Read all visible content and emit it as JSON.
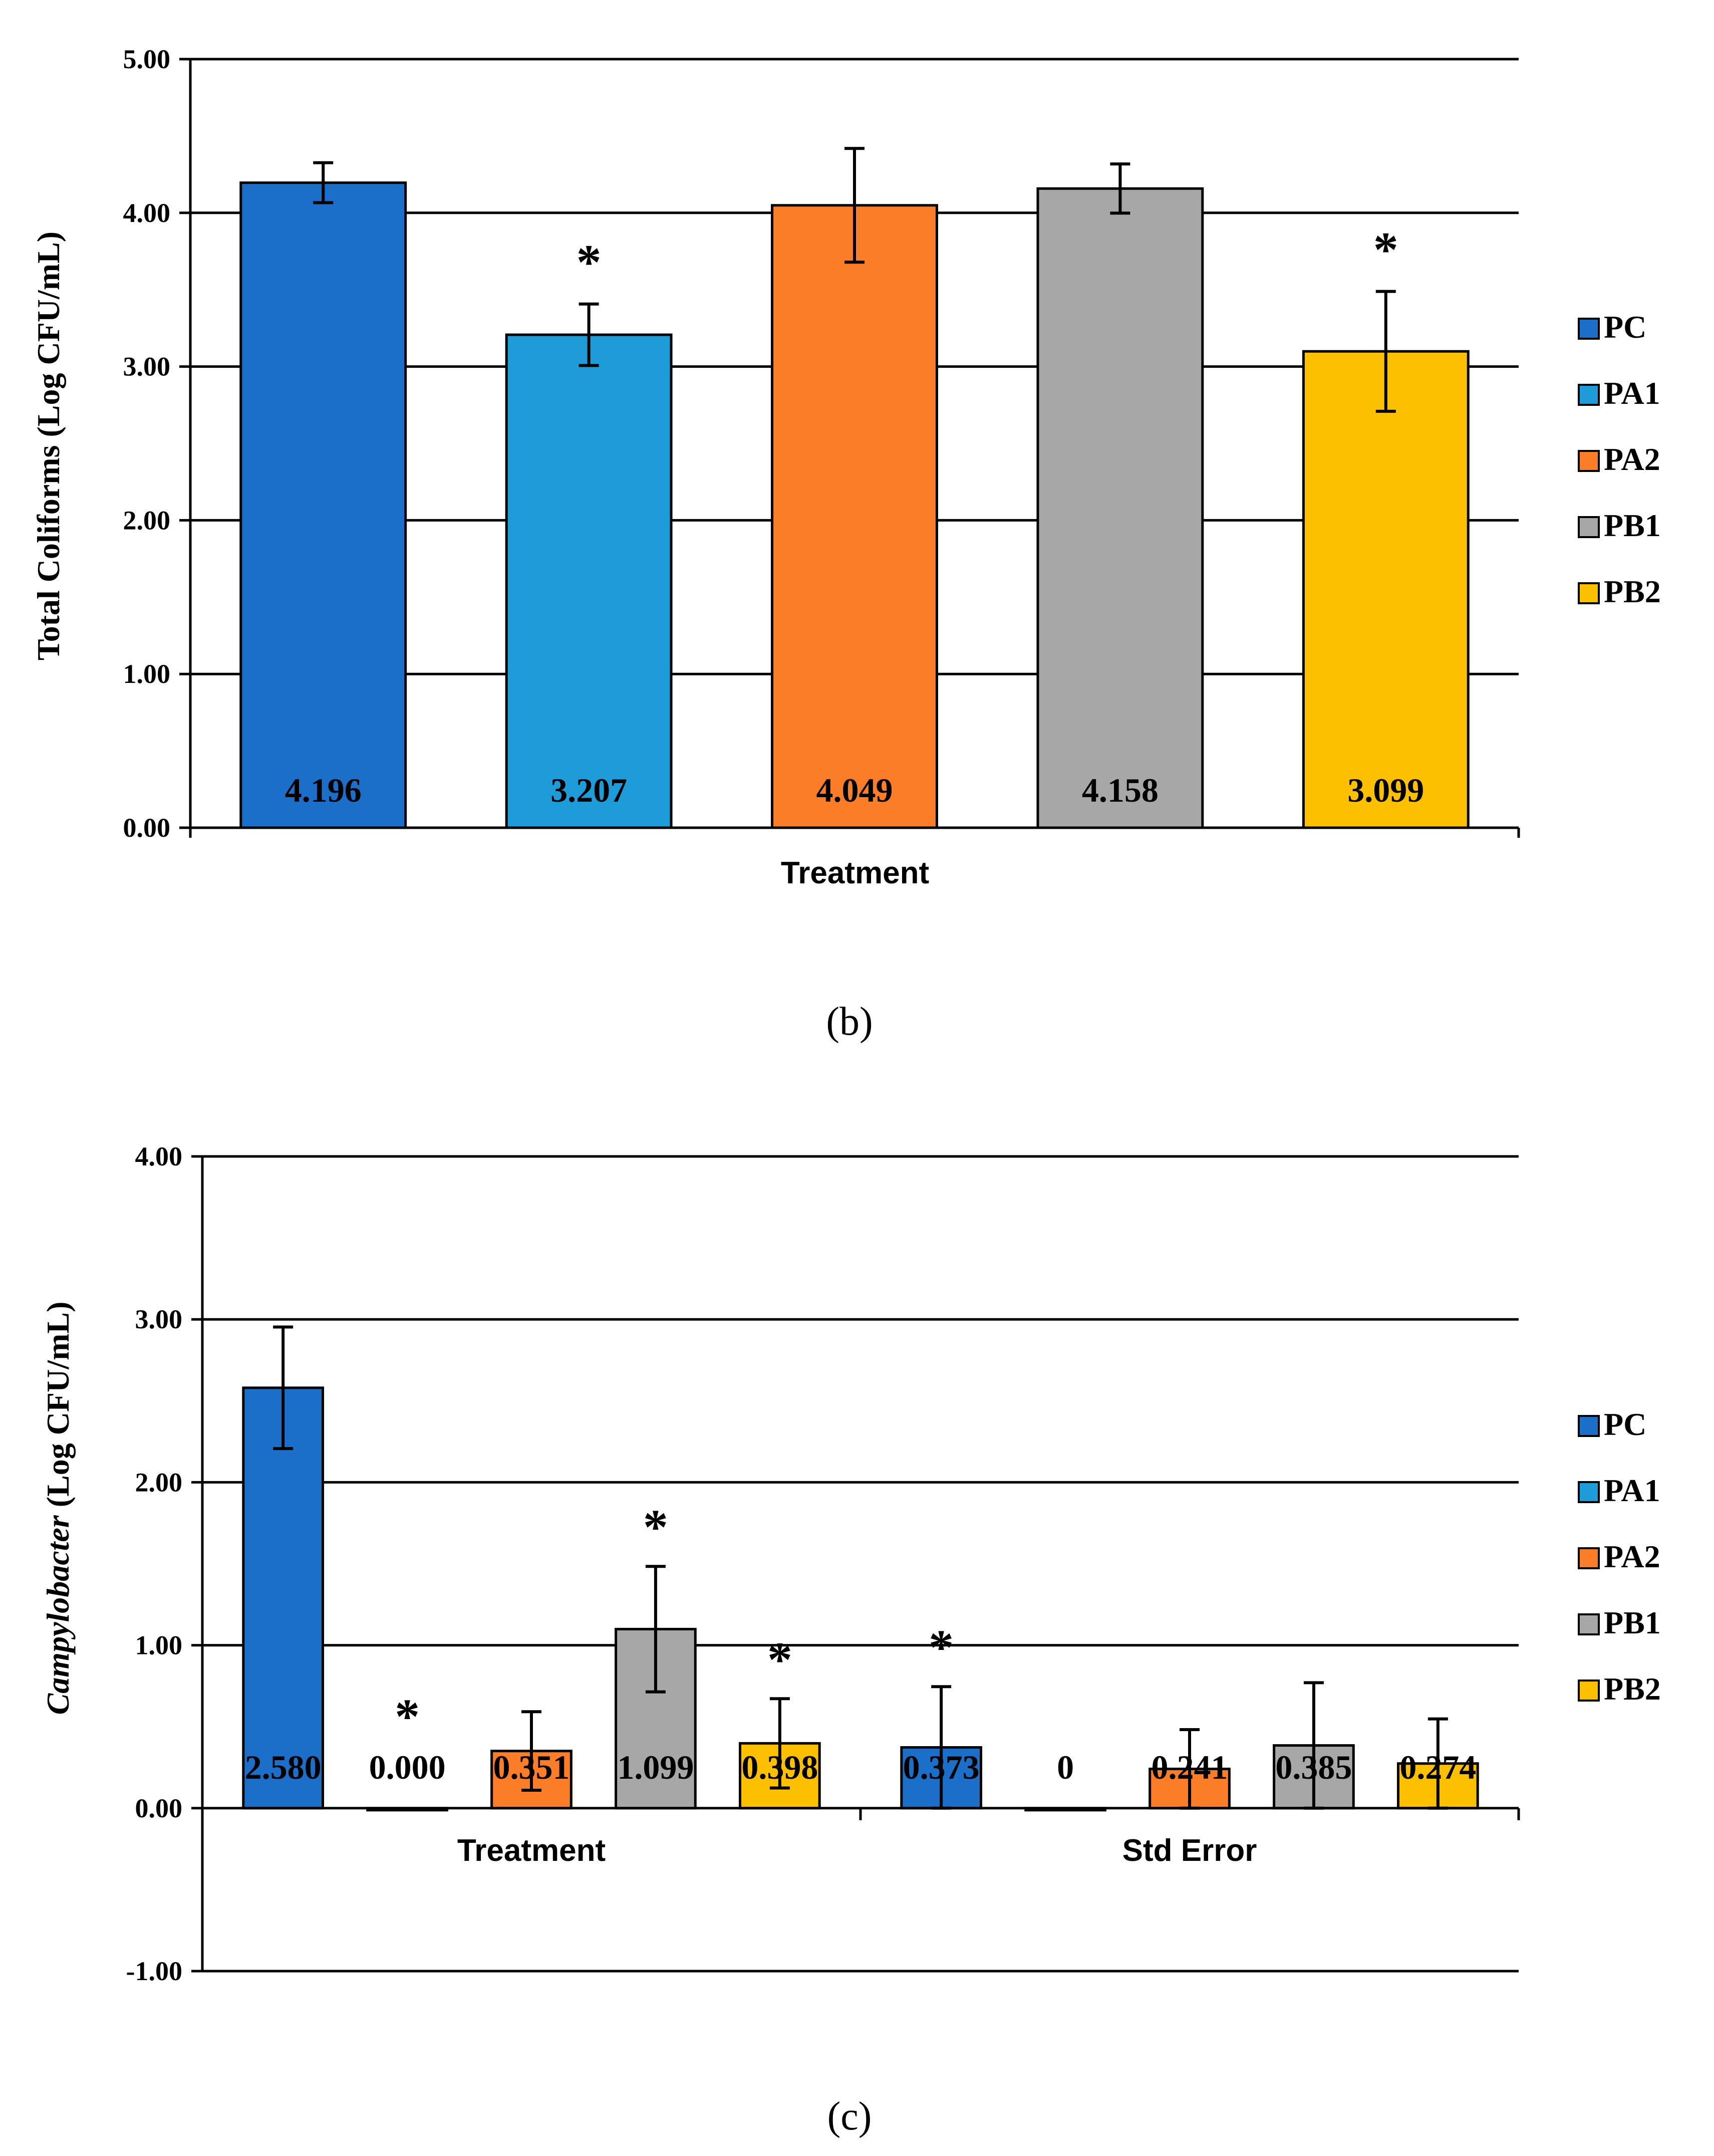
{
  "colors": {
    "PC": "#1b6fc8",
    "PA1": "#1e9cda",
    "PA2": "#fb7d28",
    "PB1": "#a7a7a7",
    "PB2": "#fdc000",
    "grid": "#000000"
  },
  "chart_data": [
    {
      "type": "bar",
      "caption": "(b)",
      "xlabel": "Treatment",
      "ylabel": "Total Coliforms (Log CFU/mL)",
      "ylim": [
        0,
        5
      ],
      "y_ticks": [
        "0.00",
        "1.00",
        "2.00",
        "3.00",
        "4.00",
        "5.00"
      ],
      "grid": true,
      "legend_position": "right",
      "categories": [
        "Treatment"
      ],
      "series": [
        {
          "name": "PC",
          "values": [
            4.196
          ],
          "error": [
            0.13
          ],
          "label": "4.196",
          "significant": false
        },
        {
          "name": "PA1",
          "values": [
            3.207
          ],
          "error": [
            0.2
          ],
          "label": "3.207",
          "significant": true
        },
        {
          "name": "PA2",
          "values": [
            4.049
          ],
          "error": [
            0.37
          ],
          "label": "4.049",
          "significant": false
        },
        {
          "name": "PB1",
          "values": [
            4.158
          ],
          "error": [
            0.16
          ],
          "label": "4.158",
          "significant": false
        },
        {
          "name": "PB2",
          "values": [
            3.099
          ],
          "error": [
            0.39
          ],
          "label": "3.099",
          "significant": true
        }
      ],
      "annotation_symbol": "*"
    },
    {
      "type": "bar",
      "caption": "(c)",
      "xlabel": "",
      "ylabel_italic": "Campylobacter",
      "ylabel_rest": " (Log CFU/mL)",
      "ylim": [
        -1,
        4
      ],
      "y_ticks": [
        "-1.00",
        "0.00",
        "1.00",
        "2.00",
        "3.00",
        "4.00"
      ],
      "grid": true,
      "legend_position": "right",
      "categories": [
        "Treatment",
        "Std Error"
      ],
      "series": [
        {
          "name": "PC",
          "values": [
            2.58,
            0.373
          ],
          "error": [
            0.373,
            0.373
          ],
          "labels": [
            "2.580",
            "0.373"
          ],
          "significant": [
            false,
            true
          ]
        },
        {
          "name": "PA1",
          "values": [
            0.0,
            0.0
          ],
          "error": [
            0,
            0
          ],
          "labels": [
            "0.000",
            "0"
          ],
          "significant": [
            true,
            false
          ]
        },
        {
          "name": "PA2",
          "values": [
            0.351,
            0.241
          ],
          "error": [
            0.241,
            0.241
          ],
          "labels": [
            "0.351",
            "0.241"
          ],
          "significant": [
            false,
            false
          ]
        },
        {
          "name": "PB1",
          "values": [
            1.099,
            0.385
          ],
          "error": [
            0.385,
            0.385
          ],
          "labels": [
            "1.099",
            "0.385"
          ],
          "significant": [
            true,
            false
          ]
        },
        {
          "name": "PB2",
          "values": [
            0.398,
            0.274
          ],
          "error": [
            0.274,
            0.274
          ],
          "labels": [
            "0.398",
            "0.274"
          ],
          "significant": [
            true,
            false
          ]
        }
      ],
      "annotation_symbol": "*"
    }
  ]
}
